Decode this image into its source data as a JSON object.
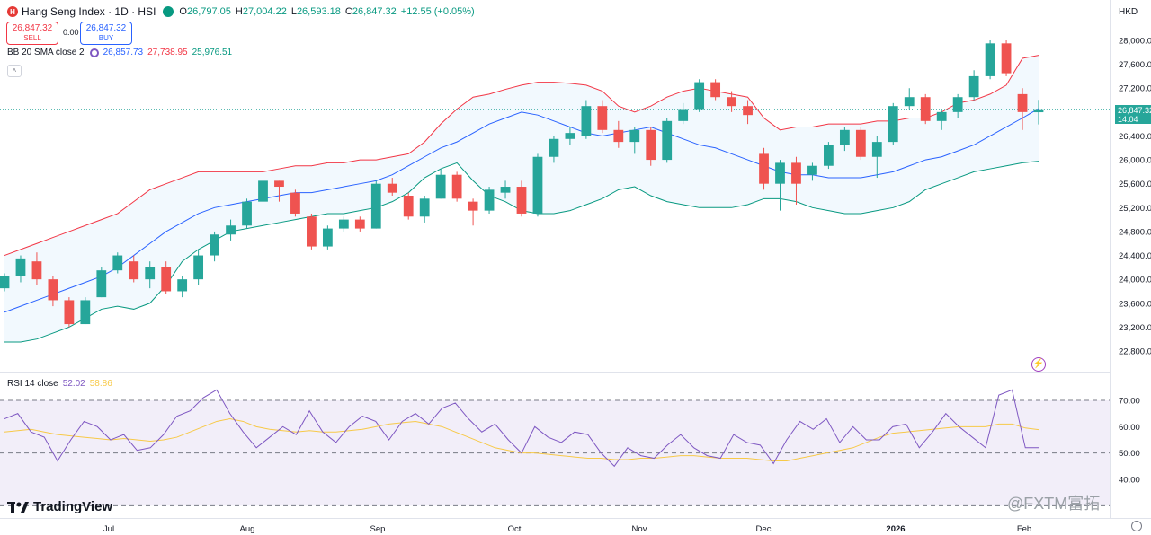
{
  "header": {
    "symbol_badge": "H",
    "title": "Hang Seng Index · 1D · HSI",
    "ohlc": [
      {
        "k": "O",
        "v": "26,797.05"
      },
      {
        "k": "H",
        "v": "27,004.22"
      },
      {
        "k": "L",
        "v": "26,593.18"
      },
      {
        "k": "C",
        "v": "26,847.32"
      }
    ],
    "change": "+12.55 (+0.05%)",
    "currency": "HKD"
  },
  "trade": {
    "sell_price": "26,847.32",
    "sell_label": "SELL",
    "spread": "0.00",
    "buy_price": "26,847.32",
    "buy_label": "BUY"
  },
  "bb_legend": {
    "label": "BB 20 SMA close 2",
    "basis": "26,857.73",
    "upper": "27,738.95",
    "lower": "25,976.51"
  },
  "rsi_legend": {
    "label": "RSI 14 close",
    "rsi": "52.02",
    "ma": "58.86"
  },
  "last_price": {
    "price": "26,847.32",
    "countdown": "14:04"
  },
  "branding": {
    "logo": "TradingView",
    "watermark": "@FXTM富拓"
  },
  "colors": {
    "up": "#26a69a",
    "down": "#ef5350",
    "basis": "#2962ff",
    "upper": "#f23645",
    "lower": "#089981",
    "rsi": "#7e57c2",
    "rsi_ma": "#f7c948"
  },
  "chart_data": [
    {
      "type": "candlestick",
      "title": "Hang Seng Index · 1D · HSI",
      "ylabel": "HKD",
      "ylim": [
        22700,
        28150
      ],
      "yticks": [
        "28,000.00",
        "27,600.00",
        "27,200.00",
        "26,800.00",
        "26,400.00",
        "26,000.00",
        "25,600.00",
        "25,200.00",
        "24,800.00",
        "24,400.00",
        "24,000.00",
        "23,600.00",
        "23,200.00",
        "22,800.00"
      ],
      "xticks": [
        "Jul",
        "Aug",
        "Sep",
        "Oct",
        "Nov",
        "Dec",
        "2026",
        "Feb"
      ],
      "series": [
        {
          "name": "Upper",
          "values": [
            24400,
            24500,
            24600,
            24700,
            24800,
            24900,
            25000,
            25100,
            25300,
            25500,
            25600,
            25700,
            25800,
            25800,
            25800,
            25800,
            25800,
            25850,
            25900,
            25900,
            25950,
            25950,
            26000,
            26000,
            26050,
            26100,
            26300,
            26600,
            26850,
            27050,
            27100,
            27180,
            27250,
            27300,
            27300,
            27280,
            27250,
            27150,
            26900,
            26800,
            26900,
            27050,
            27150,
            27200,
            27150,
            27100,
            27050,
            26700,
            26500,
            26550,
            26550,
            26600,
            26600,
            26600,
            26650,
            26650,
            26700,
            26700,
            26800,
            26950,
            27000,
            27100,
            27250,
            27700,
            27750
          ]
        },
        {
          "name": "Basis",
          "values": [
            23450,
            23550,
            23650,
            23750,
            23850,
            23950,
            24050,
            24200,
            24400,
            24600,
            24800,
            24950,
            25100,
            25200,
            25250,
            25300,
            25350,
            25400,
            25450,
            25450,
            25500,
            25550,
            25600,
            25650,
            25750,
            25900,
            26050,
            26200,
            26300,
            26450,
            26600,
            26700,
            26800,
            26750,
            26650,
            26550,
            26450,
            26400,
            26450,
            26500,
            26550,
            26450,
            26350,
            26250,
            26200,
            26100,
            26000,
            25900,
            25800,
            25750,
            25750,
            25700,
            25700,
            25700,
            25750,
            25800,
            25900,
            26000,
            26050,
            26150,
            26250,
            26400,
            26550,
            26700,
            26858
          ]
        },
        {
          "name": "Lower",
          "values": [
            22950,
            22950,
            23000,
            23100,
            23200,
            23350,
            23500,
            23550,
            23500,
            23600,
            23900,
            24300,
            24500,
            24650,
            24800,
            24850,
            24900,
            24950,
            25000,
            25050,
            25100,
            25100,
            25150,
            25200,
            25300,
            25450,
            25700,
            25850,
            25950,
            25650,
            25400,
            25300,
            25150,
            25100,
            25100,
            25150,
            25250,
            25350,
            25500,
            25550,
            25400,
            25300,
            25250,
            25200,
            25200,
            25200,
            25250,
            25350,
            25350,
            25300,
            25200,
            25150,
            25100,
            25100,
            25150,
            25200,
            25300,
            25500,
            25600,
            25700,
            25800,
            25850,
            25900,
            25950,
            25977
          ]
        }
      ],
      "candles": [
        {
          "o": 23850,
          "h": 24100,
          "l": 23800,
          "c": 24050
        },
        {
          "o": 24050,
          "h": 24400,
          "l": 23950,
          "c": 24350
        },
        {
          "o": 24300,
          "h": 24450,
          "l": 23900,
          "c": 24000
        },
        {
          "o": 24000,
          "h": 24050,
          "l": 23550,
          "c": 23650
        },
        {
          "o": 23650,
          "h": 23700,
          "l": 23200,
          "c": 23250
        },
        {
          "o": 23250,
          "h": 23700,
          "l": 23250,
          "c": 23650
        },
        {
          "o": 23700,
          "h": 24200,
          "l": 23700,
          "c": 24150
        },
        {
          "o": 24150,
          "h": 24450,
          "l": 24100,
          "c": 24400
        },
        {
          "o": 24300,
          "h": 24400,
          "l": 23950,
          "c": 24000
        },
        {
          "o": 24000,
          "h": 24300,
          "l": 23850,
          "c": 24200
        },
        {
          "o": 24200,
          "h": 24300,
          "l": 23750,
          "c": 23800
        },
        {
          "o": 23800,
          "h": 24050,
          "l": 23700,
          "c": 24000
        },
        {
          "o": 24000,
          "h": 24500,
          "l": 23900,
          "c": 24400
        },
        {
          "o": 24400,
          "h": 24800,
          "l": 24300,
          "c": 24750
        },
        {
          "o": 24750,
          "h": 25000,
          "l": 24650,
          "c": 24900
        },
        {
          "o": 24900,
          "h": 25350,
          "l": 24850,
          "c": 25300
        },
        {
          "o": 25300,
          "h": 25750,
          "l": 25250,
          "c": 25650
        },
        {
          "o": 25650,
          "h": 25650,
          "l": 25300,
          "c": 25550
        },
        {
          "o": 25450,
          "h": 25500,
          "l": 25050,
          "c": 25100
        },
        {
          "o": 25050,
          "h": 25100,
          "l": 24500,
          "c": 24550
        },
        {
          "o": 24550,
          "h": 24900,
          "l": 24500,
          "c": 24850
        },
        {
          "o": 24850,
          "h": 25050,
          "l": 24800,
          "c": 25000
        },
        {
          "o": 25000,
          "h": 25050,
          "l": 24800,
          "c": 24850
        },
        {
          "o": 24850,
          "h": 25650,
          "l": 24850,
          "c": 25600
        },
        {
          "o": 25600,
          "h": 25700,
          "l": 25400,
          "c": 25450
        },
        {
          "o": 25400,
          "h": 25450,
          "l": 25000,
          "c": 25050
        },
        {
          "o": 25050,
          "h": 25400,
          "l": 24950,
          "c": 25350
        },
        {
          "o": 25350,
          "h": 25850,
          "l": 25350,
          "c": 25750
        },
        {
          "o": 25750,
          "h": 25800,
          "l": 25300,
          "c": 25350
        },
        {
          "o": 25300,
          "h": 25350,
          "l": 24900,
          "c": 25150
        },
        {
          "o": 25150,
          "h": 25550,
          "l": 25100,
          "c": 25500
        },
        {
          "o": 25450,
          "h": 25650,
          "l": 25350,
          "c": 25550
        },
        {
          "o": 25550,
          "h": 25650,
          "l": 25050,
          "c": 25100
        },
        {
          "o": 25100,
          "h": 26100,
          "l": 25050,
          "c": 26050
        },
        {
          "o": 26050,
          "h": 26400,
          "l": 25950,
          "c": 26350
        },
        {
          "o": 26350,
          "h": 26550,
          "l": 26250,
          "c": 26450
        },
        {
          "o": 26400,
          "h": 27000,
          "l": 26350,
          "c": 26900
        },
        {
          "o": 26900,
          "h": 27000,
          "l": 26450,
          "c": 26500
        },
        {
          "o": 26500,
          "h": 26650,
          "l": 26200,
          "c": 26300
        },
        {
          "o": 26300,
          "h": 26550,
          "l": 26100,
          "c": 26500
        },
        {
          "o": 26500,
          "h": 26550,
          "l": 25900,
          "c": 26000
        },
        {
          "o": 26000,
          "h": 26700,
          "l": 25950,
          "c": 26650
        },
        {
          "o": 26650,
          "h": 26950,
          "l": 26600,
          "c": 26850
        },
        {
          "o": 26850,
          "h": 27350,
          "l": 26800,
          "c": 27300
        },
        {
          "o": 27300,
          "h": 27350,
          "l": 27000,
          "c": 27050
        },
        {
          "o": 27050,
          "h": 27150,
          "l": 26800,
          "c": 26900
        },
        {
          "o": 26900,
          "h": 27000,
          "l": 26600,
          "c": 26750
        },
        {
          "o": 26100,
          "h": 26200,
          "l": 25500,
          "c": 25600
        },
        {
          "o": 25600,
          "h": 26000,
          "l": 25150,
          "c": 25950
        },
        {
          "o": 25950,
          "h": 26050,
          "l": 25250,
          "c": 25600
        },
        {
          "o": 25750,
          "h": 25950,
          "l": 25650,
          "c": 25900
        },
        {
          "o": 25900,
          "h": 26300,
          "l": 25850,
          "c": 26250
        },
        {
          "o": 26250,
          "h": 26550,
          "l": 26150,
          "c": 26500
        },
        {
          "o": 26500,
          "h": 26550,
          "l": 26000,
          "c": 26050
        },
        {
          "o": 26050,
          "h": 26400,
          "l": 25700,
          "c": 26300
        },
        {
          "o": 26300,
          "h": 26950,
          "l": 26250,
          "c": 26900
        },
        {
          "o": 26900,
          "h": 27200,
          "l": 26850,
          "c": 27050
        },
        {
          "o": 27050,
          "h": 27100,
          "l": 26600,
          "c": 26650
        },
        {
          "o": 26650,
          "h": 26850,
          "l": 26500,
          "c": 26800
        },
        {
          "o": 26800,
          "h": 27100,
          "l": 26700,
          "c": 27050
        },
        {
          "o": 27050,
          "h": 27500,
          "l": 27000,
          "c": 27400
        },
        {
          "o": 27400,
          "h": 28000,
          "l": 27350,
          "c": 27950
        },
        {
          "o": 27950,
          "h": 28000,
          "l": 27400,
          "c": 27450
        },
        {
          "o": 27100,
          "h": 27200,
          "l": 26500,
          "c": 26800
        },
        {
          "o": 26797,
          "h": 27004,
          "l": 26593,
          "c": 26847
        }
      ]
    },
    {
      "type": "line",
      "title": "RSI 14 close",
      "ylim": [
        30,
        76
      ],
      "yticks": [
        "70.00",
        "60.00",
        "50.00",
        "40.00"
      ],
      "xticks": [
        "Jul",
        "Aug",
        "Sep",
        "Oct",
        "Nov",
        "Dec",
        "2026",
        "Feb"
      ],
      "series": [
        {
          "name": "RSI",
          "values": [
            63,
            65,
            58,
            56,
            47,
            55,
            62,
            60,
            55,
            57,
            51,
            52,
            57,
            64,
            66,
            71,
            74,
            65,
            58,
            52,
            56,
            60,
            57,
            66,
            58,
            54,
            60,
            64,
            62,
            55,
            62,
            65,
            61,
            67,
            69,
            63,
            58,
            61,
            55,
            50,
            60,
            56,
            54,
            58,
            57,
            50,
            45,
            52,
            49,
            48,
            53,
            57,
            52,
            49,
            48,
            57,
            54,
            53,
            46,
            55,
            62,
            59,
            63,
            54,
            60,
            55,
            55,
            60,
            61,
            52,
            58,
            65,
            60,
            56,
            52,
            72,
            74,
            52,
            52
          ]
        },
        {
          "name": "MA",
          "values": [
            58,
            58.5,
            59,
            58,
            57,
            56.5,
            56,
            55.5,
            55,
            55.5,
            55,
            54.5,
            55,
            56,
            58,
            60,
            62,
            63,
            62,
            60,
            59,
            58.5,
            58,
            58.5,
            58,
            58,
            58.5,
            59,
            60,
            61,
            61.5,
            62,
            61,
            60,
            58,
            56,
            54,
            52,
            51,
            50,
            50,
            49.5,
            49,
            48.5,
            48,
            48,
            47.5,
            47.5,
            48,
            48,
            48.5,
            49,
            49,
            48.5,
            48,
            48,
            48,
            47.5,
            47,
            47,
            48,
            49,
            50,
            51,
            52,
            54,
            56,
            57.5,
            58,
            58.5,
            59,
            59.5,
            60,
            60,
            60,
            61,
            61,
            59.5,
            58.86
          ]
        }
      ]
    }
  ]
}
